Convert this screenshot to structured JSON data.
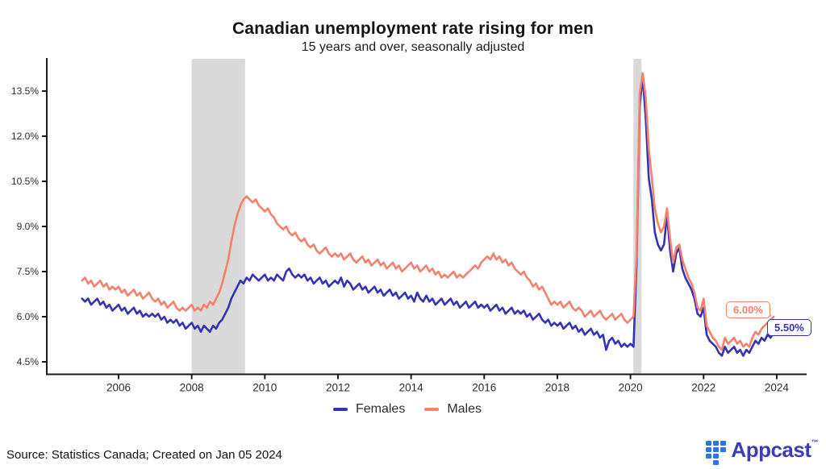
{
  "chart_data": {
    "type": "line",
    "title": "Canadian unemployment rate rising for men",
    "subtitle": "15 years and over, seasonally adjusted",
    "x_start_year": 2005.0,
    "x_step_months": 1,
    "ylim": [
      4.5,
      14.1
    ],
    "yticks": [
      4.5,
      6.0,
      7.5,
      9.0,
      10.5,
      12.0,
      13.5
    ],
    "ytick_labels": [
      "4.5%",
      "6.0%",
      "7.5%",
      "9.0%",
      "10.5%",
      "12.0%",
      "13.5%"
    ],
    "xticks": [
      2006,
      2008,
      2010,
      2012,
      2014,
      2016,
      2018,
      2020,
      2022,
      2024
    ],
    "xtick_labels": [
      "2006",
      "2008",
      "2010",
      "2012",
      "2014",
      "2016",
      "2018",
      "2020",
      "2022",
      "2024"
    ],
    "grid": false,
    "legend_position": "bottom",
    "recession_bands": [
      [
        2008.0,
        2009.46
      ],
      [
        2020.08,
        2020.3
      ]
    ],
    "band_color": "#d9d9d9",
    "axis_color": "#1a1a1a",
    "series": [
      {
        "name": "Females",
        "color": "#3333b3",
        "values": [
          6.6,
          6.5,
          6.6,
          6.4,
          6.5,
          6.6,
          6.4,
          6.5,
          6.3,
          6.4,
          6.2,
          6.3,
          6.4,
          6.2,
          6.3,
          6.1,
          6.2,
          6.3,
          6.1,
          6.2,
          6.0,
          6.1,
          6.0,
          6.1,
          6.0,
          6.1,
          5.9,
          6.0,
          5.8,
          5.9,
          5.8,
          5.9,
          5.7,
          5.8,
          5.6,
          5.7,
          5.8,
          5.6,
          5.7,
          5.5,
          5.7,
          5.6,
          5.5,
          5.7,
          5.6,
          5.8,
          5.9,
          6.1,
          6.3,
          6.6,
          6.8,
          7.0,
          7.2,
          7.1,
          7.3,
          7.2,
          7.4,
          7.3,
          7.2,
          7.3,
          7.4,
          7.2,
          7.3,
          7.2,
          7.4,
          7.3,
          7.2,
          7.5,
          7.6,
          7.4,
          7.3,
          7.4,
          7.3,
          7.4,
          7.2,
          7.3,
          7.1,
          7.2,
          7.3,
          7.1,
          7.2,
          7.0,
          7.1,
          7.2,
          7.1,
          7.3,
          7.0,
          7.2,
          7.1,
          6.9,
          7.0,
          7.1,
          6.9,
          7.0,
          6.8,
          6.9,
          7.0,
          6.8,
          6.9,
          6.7,
          6.8,
          6.9,
          6.7,
          6.8,
          6.6,
          6.7,
          6.8,
          6.6,
          6.7,
          6.5,
          6.8,
          6.6,
          6.5,
          6.7,
          6.5,
          6.6,
          6.4,
          6.5,
          6.6,
          6.4,
          6.5,
          6.6,
          6.4,
          6.5,
          6.3,
          6.4,
          6.5,
          6.3,
          6.4,
          6.5,
          6.3,
          6.4,
          6.3,
          6.4,
          6.2,
          6.3,
          6.4,
          6.2,
          6.3,
          6.1,
          6.2,
          6.3,
          6.1,
          6.2,
          6.1,
          6.2,
          6.0,
          6.1,
          5.9,
          6.0,
          6.1,
          5.9,
          5.8,
          5.9,
          5.7,
          5.8,
          5.7,
          5.8,
          5.6,
          5.7,
          5.8,
          5.6,
          5.7,
          5.5,
          5.6,
          5.4,
          5.5,
          5.6,
          5.4,
          5.5,
          5.3,
          5.4,
          4.9,
          5.2,
          5.3,
          5.1,
          5.2,
          5.0,
          5.1,
          5.0,
          5.1,
          5.0,
          7.8,
          13.0,
          14.0,
          12.6,
          10.6,
          9.9,
          8.8,
          8.4,
          8.2,
          8.4,
          9.4,
          8.2,
          7.5,
          8.1,
          8.3,
          7.6,
          7.3,
          7.1,
          6.9,
          6.6,
          6.1,
          6.0,
          6.3,
          5.4,
          5.2,
          5.1,
          5.0,
          4.8,
          4.7,
          5.0,
          4.8,
          4.9,
          5.0,
          4.8,
          4.9,
          4.7,
          4.9,
          4.8,
          5.0,
          5.2,
          5.1,
          5.3,
          5.2,
          5.4,
          5.3,
          5.5
        ]
      },
      {
        "name": "Males",
        "color": "#f4806e",
        "values": [
          7.2,
          7.3,
          7.1,
          7.2,
          7.0,
          7.1,
          7.2,
          7.0,
          7.1,
          6.9,
          7.0,
          6.9,
          7.0,
          6.8,
          6.9,
          6.7,
          6.8,
          6.9,
          6.7,
          6.8,
          6.6,
          6.7,
          6.8,
          6.6,
          6.5,
          6.6,
          6.4,
          6.5,
          6.3,
          6.4,
          6.5,
          6.3,
          6.2,
          6.3,
          6.2,
          6.3,
          6.4,
          6.2,
          6.3,
          6.2,
          6.4,
          6.3,
          6.5,
          6.4,
          6.6,
          6.8,
          7.1,
          7.5,
          7.9,
          8.5,
          9.0,
          9.4,
          9.7,
          9.9,
          10.0,
          9.9,
          9.8,
          9.9,
          9.7,
          9.6,
          9.5,
          9.6,
          9.4,
          9.3,
          9.1,
          9.0,
          8.9,
          9.0,
          8.8,
          8.7,
          8.8,
          8.6,
          8.5,
          8.6,
          8.4,
          8.3,
          8.4,
          8.2,
          8.1,
          8.2,
          8.3,
          8.1,
          8.0,
          8.1,
          8.0,
          8.1,
          7.9,
          8.0,
          8.1,
          7.9,
          7.8,
          7.9,
          8.0,
          7.8,
          7.9,
          7.7,
          7.8,
          7.9,
          7.7,
          7.8,
          7.6,
          7.7,
          7.8,
          7.6,
          7.7,
          7.5,
          7.6,
          7.7,
          7.8,
          7.6,
          7.7,
          7.5,
          7.6,
          7.7,
          7.5,
          7.6,
          7.4,
          7.5,
          7.3,
          7.4,
          7.3,
          7.4,
          7.5,
          7.3,
          7.4,
          7.3,
          7.4,
          7.5,
          7.6,
          7.7,
          7.6,
          7.8,
          7.9,
          8.0,
          7.9,
          8.1,
          7.9,
          8.0,
          7.8,
          7.9,
          7.7,
          7.8,
          7.6,
          7.5,
          7.4,
          7.5,
          7.3,
          7.2,
          7.0,
          7.1,
          6.9,
          7.0,
          6.8,
          6.6,
          6.4,
          6.5,
          6.4,
          6.5,
          6.3,
          6.4,
          6.5,
          6.3,
          6.2,
          6.3,
          6.2,
          6.0,
          6.1,
          6.2,
          6.0,
          6.1,
          6.2,
          6.0,
          5.9,
          6.0,
          6.1,
          5.9,
          6.0,
          6.1,
          5.9,
          5.8,
          5.9,
          6.0,
          8.1,
          13.4,
          14.1,
          13.3,
          11.6,
          10.6,
          9.6,
          9.1,
          8.8,
          9.0,
          9.6,
          8.6,
          7.8,
          8.3,
          8.4,
          7.9,
          7.6,
          7.3,
          7.1,
          6.8,
          6.3,
          6.2,
          6.6,
          5.7,
          5.5,
          5.3,
          5.2,
          5.0,
          4.9,
          5.3,
          5.1,
          5.2,
          5.3,
          5.1,
          5.2,
          5.0,
          5.1,
          5.0,
          5.3,
          5.5,
          5.4,
          5.6,
          5.7,
          5.8,
          5.9,
          6.0
        ]
      }
    ],
    "end_labels": [
      {
        "series": "Males",
        "text": "6.00%",
        "color": "#f4806e"
      },
      {
        "series": "Females",
        "text": "5.50%",
        "color": "#3333b3"
      }
    ]
  },
  "footer": {
    "source": "Source: Statistics Canada; Created on Jan 05 2024",
    "brand": "Appcast",
    "brand_tm": "™",
    "logo_icon_color": "#2e74e8",
    "logo_text_color": "#3c3cb4"
  }
}
